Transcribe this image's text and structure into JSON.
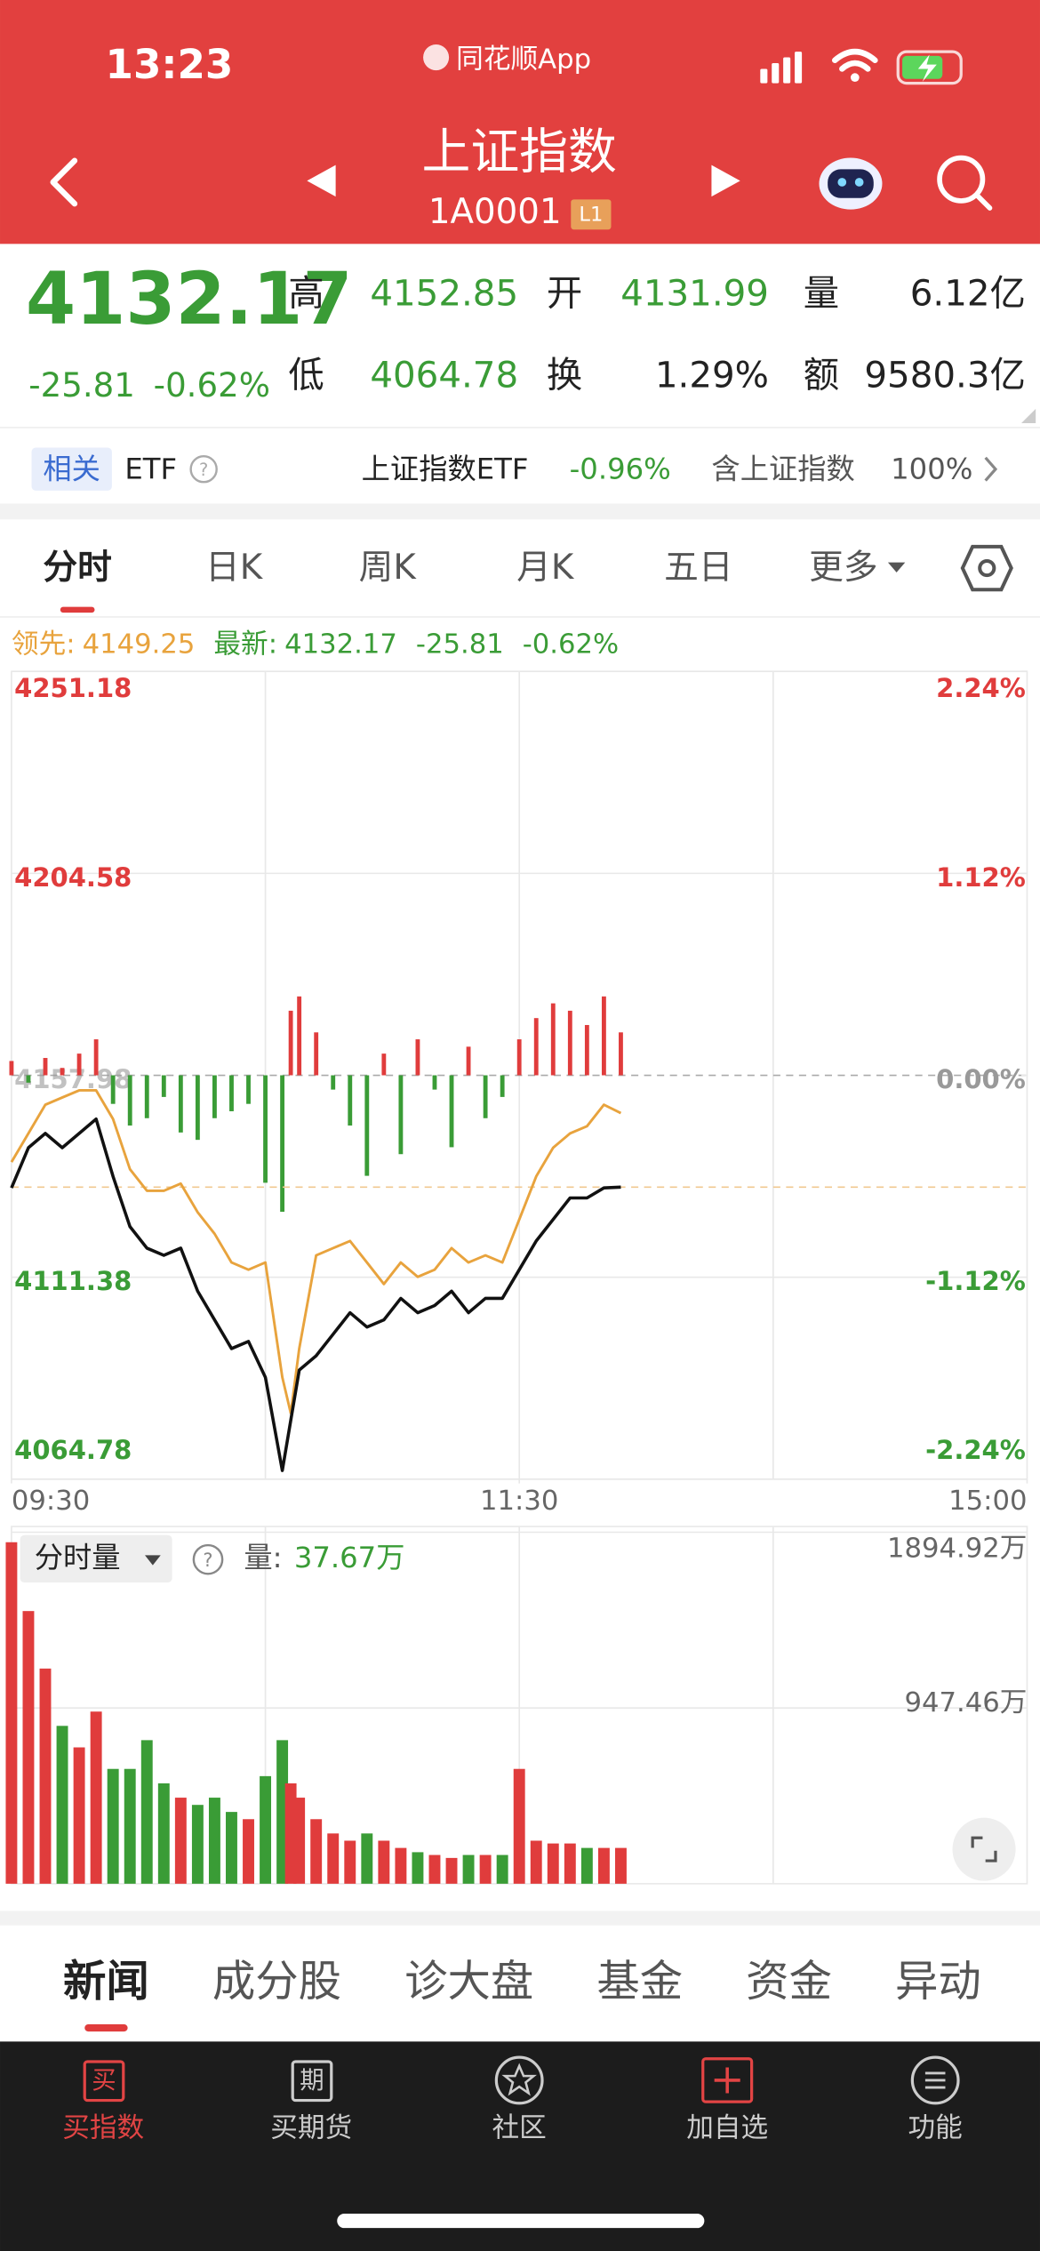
{
  "status": {
    "time": "13:23",
    "app": "同花顺App"
  },
  "header": {
    "title": "上证指数",
    "code": "1A0001",
    "badge": "L1"
  },
  "quote": {
    "price": "4132.17",
    "change": "-25.81",
    "change_pct": "-0.62%",
    "fields": [
      {
        "label": "高",
        "value": "4152.85"
      },
      {
        "label": "开",
        "value": "4131.99"
      },
      {
        "label": "量",
        "value": "6.12亿"
      },
      {
        "label": "低",
        "value": "4064.78"
      },
      {
        "label": "换",
        "value": "1.29%"
      },
      {
        "label": "额",
        "value": "9580.3亿"
      }
    ]
  },
  "etf": {
    "tag": "相关",
    "label": "ETF",
    "name": "上证指数ETF",
    "change": "-0.96%",
    "holding_label": "含上证指数",
    "holding": "100%"
  },
  "tabs": [
    "分时",
    "日K",
    "周K",
    "月K",
    "五日",
    "更多"
  ],
  "chart_data": [
    {
      "type": "line",
      "x": [
        0,
        4,
        8,
        12,
        16,
        20,
        24,
        28,
        32,
        36,
        40,
        44,
        48,
        52,
        56,
        60,
        64,
        66,
        68,
        72,
        76,
        80,
        84,
        88,
        92,
        96,
        100,
        104,
        108,
        112,
        116,
        120,
        124,
        128,
        132,
        136,
        140,
        144
      ],
      "xlim": [
        0,
        240
      ],
      "xticks": [
        {
          "value": 0,
          "label": "09:30"
        },
        {
          "value": 120,
          "label": "11:30"
        },
        {
          "value": 240,
          "label": "15:00"
        }
      ],
      "ylim": [
        4064.78,
        4251.18
      ],
      "yticks": [
        4064.78,
        4111.38,
        4157.98,
        4204.58,
        4251.18
      ],
      "y2lim": [
        -2.24,
        2.24
      ],
      "y2ticks": [
        {
          "value": -2.24,
          "label": "-2.24%"
        },
        {
          "value": -1.12,
          "label": "-1.12%"
        },
        {
          "value": 0,
          "label": "0.00%"
        },
        {
          "value": 1.12,
          "label": "1.12%"
        },
        {
          "value": 2.24,
          "label": "2.24%"
        }
      ],
      "series": [
        {
          "name": "领先:",
          "color": "#e8a33d",
          "label_color": "#e8a33d",
          "legend_values": [
            "4149.25"
          ],
          "values": [
            4137.95,
            4144.57,
            4151.19,
            4152.85,
            4154.5,
            4154.5,
            4147.88,
            4136.3,
            4131.33,
            4131.33,
            4132.98,
            4126.36,
            4121.4,
            4114.78,
            4113.12,
            4114.78,
            4088.29,
            4080.01,
            4094.91,
            4116.43,
            4118.09,
            4119.74,
            4114.78,
            4109.81,
            4114.78,
            4111.46,
            4113.12,
            4118.09,
            4114.78,
            4116.43,
            4114.78,
            4124.71,
            4134.64,
            4141.26,
            4144.57,
            4146.23,
            4151.19,
            4149.25
          ]
        },
        {
          "name": "最新:",
          "color": "#111111",
          "label_color": "#3a9c36",
          "legend_values": [
            "4132.17",
            "-25.81",
            "-0.62%"
          ],
          "values": [
            4131.99,
            4141.26,
            4144.57,
            4141.26,
            4144.57,
            4147.88,
            4134.64,
            4123.05,
            4118.09,
            4116.43,
            4118.09,
            4108.15,
            4101.53,
            4094.91,
            4096.57,
            4088.29,
            4066.77,
            4078.36,
            4089.94,
            4093.25,
            4098.22,
            4103.19,
            4099.88,
            4101.53,
            4106.5,
            4103.19,
            4104.84,
            4108.15,
            4103.19,
            4106.5,
            4106.5,
            4113.12,
            4119.74,
            4124.71,
            4129.67,
            4129.67,
            4131.99,
            4132.17
          ]
        }
      ],
      "spread": {
        "up_color": "#e03c3c",
        "down_color": "#3a9c36",
        "values": [
          3.3,
          -1.7,
          4.0,
          1.7,
          5.0,
          8.3,
          -6.6,
          -11.6,
          -9.9,
          -5.0,
          -13.2,
          -14.9,
          -9.9,
          -8.3,
          -6.6,
          -24.8,
          -31.5,
          14.9,
          18.2,
          9.9,
          -3.3,
          -11.6,
          -23.2,
          5.0,
          -18.2,
          8.3,
          -3.3,
          -16.6,
          6.6,
          -9.9,
          -5.0,
          8.3,
          13.2,
          16.6,
          14.9,
          11.6,
          18.2,
          9.9
        ]
      }
    },
    {
      "type": "bar",
      "x": [
        0,
        4,
        8,
        12,
        16,
        20,
        24,
        28,
        32,
        36,
        40,
        44,
        48,
        52,
        56,
        60,
        64,
        66,
        68,
        72,
        76,
        80,
        84,
        88,
        92,
        96,
        100,
        104,
        108,
        112,
        116,
        120,
        124,
        128,
        132,
        136,
        140,
        144
      ],
      "xlim": [
        0,
        240
      ],
      "values": [
        1841,
        1470,
        1160,
        851,
        735,
        928,
        619,
        619,
        774,
        541,
        464,
        425,
        464,
        387,
        348,
        580,
        774,
        541,
        464,
        348,
        271,
        232,
        271,
        232,
        193,
        170,
        155,
        139,
        155,
        155,
        155,
        619,
        232,
        217,
        217,
        193,
        193,
        193
      ],
      "colors": [
        "#e03c3c",
        "#e03c3c",
        "#e03c3c",
        "#3a9c36",
        "#e03c3c",
        "#e03c3c",
        "#3a9c36",
        "#3a9c36",
        "#3a9c36",
        "#3a9c36",
        "#e03c3c",
        "#3a9c36",
        "#3a9c36",
        "#3a9c36",
        "#e03c3c",
        "#3a9c36",
        "#3a9c36",
        "#e03c3c",
        "#e03c3c",
        "#e03c3c",
        "#e03c3c",
        "#e03c3c",
        "#3a9c36",
        "#e03c3c",
        "#e03c3c",
        "#3a9c36",
        "#e03c3c",
        "#e03c3c",
        "#3a9c36",
        "#e03c3c",
        "#3a9c36",
        "#e03c3c",
        "#e03c3c",
        "#e03c3c",
        "#e03c3c",
        "#3a9c36",
        "#e03c3c",
        "#e03c3c"
      ],
      "ylim": [
        0,
        1894.92
      ],
      "yticks": [
        {
          "value": 947.46,
          "label": "947.46万"
        },
        {
          "value": 1894.92,
          "label": "1894.92万"
        }
      ]
    }
  ],
  "volume_panel": {
    "button": "分时量",
    "label": "量:",
    "value": "37.67万"
  },
  "news_tabs": [
    "新闻",
    "成分股",
    "诊大盘",
    "基金",
    "资金",
    "异动"
  ],
  "nav": [
    {
      "icon": "买",
      "label": "买指数"
    },
    {
      "icon": "期",
      "label": "买期货"
    },
    {
      "label": "社区"
    },
    {
      "label": "加自选"
    },
    {
      "label": "功能"
    }
  ]
}
